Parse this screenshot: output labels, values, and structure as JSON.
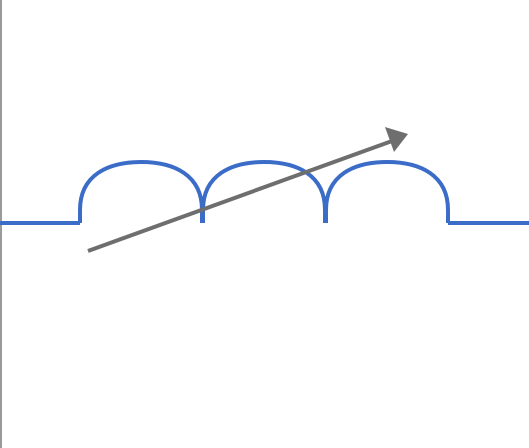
{
  "diagram": {
    "symbol": "variable-inductor",
    "coil_turns": 3,
    "colors": {
      "coil": "#3a6cc8",
      "arrow": "#6e6e6e",
      "left_edge": "#9a9a9a",
      "background": "#ffffff"
    }
  }
}
